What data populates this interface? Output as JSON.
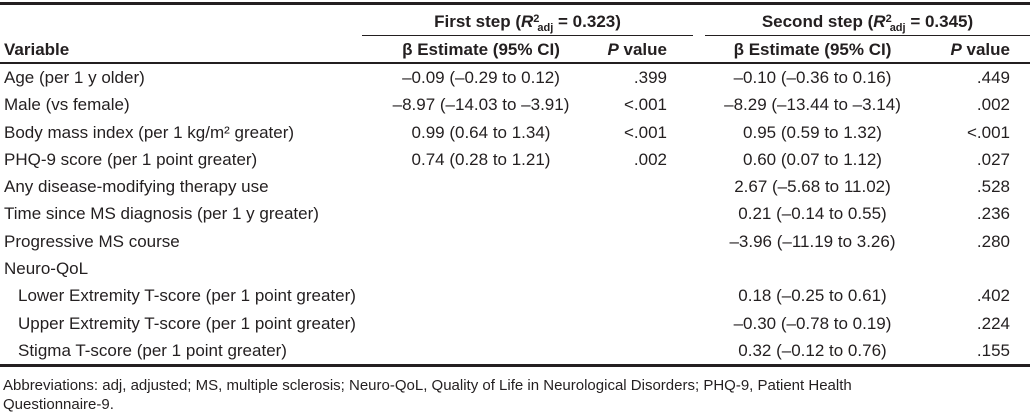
{
  "colors": {
    "text": "#231f20",
    "rule": "#231f20",
    "background": "#ffffff"
  },
  "header": {
    "variable_label": "Variable",
    "groups": [
      {
        "name_prefix": "First step (",
        "r_var": "R",
        "r_sup": "2",
        "r_sub": "adj",
        "name_suffix": " = 0.323)",
        "estimate_label": "β Estimate (95% CI)",
        "p_label_italic": "P",
        "p_label_rest": " value"
      },
      {
        "name_prefix": "Second step (",
        "r_var": "R",
        "r_sup": "2",
        "r_sub": "adj",
        "name_suffix": " = 0.345)",
        "estimate_label": "β Estimate (95% CI)",
        "p_label_italic": "P",
        "p_label_rest": " value"
      }
    ]
  },
  "rows": [
    {
      "variable": "Age (per 1 y older)",
      "step1_estimate": "–0.09 (–0.29 to 0.12)",
      "step1_p": ".399",
      "step2_estimate": "–0.10 (–0.36 to 0.16)",
      "step2_p": ".449"
    },
    {
      "variable": "Male (vs female)",
      "step1_estimate": "–8.97 (–14.03 to –3.91)",
      "step1_p": "<.001",
      "step2_estimate": "–8.29 (–13.44 to –3.14)",
      "step2_p": ".002"
    },
    {
      "variable": "Body mass index (per 1 kg/m² greater)",
      "step1_estimate": "0.99 (0.64 to 1.34)",
      "step1_p": "<.001",
      "step2_estimate": "0.95 (0.59 to 1.32)",
      "step2_p": "<.001"
    },
    {
      "variable": "PHQ-9 score (per 1 point greater)",
      "step1_estimate": "0.74 (0.28 to 1.21)",
      "step1_p": ".002",
      "step2_estimate": "0.60 (0.07 to 1.12)",
      "step2_p": ".027"
    },
    {
      "variable": "Any disease-modifying therapy use",
      "step1_estimate": "",
      "step1_p": "",
      "step2_estimate": "2.67 (–5.68 to 11.02)",
      "step2_p": ".528"
    },
    {
      "variable": "Time since MS diagnosis (per 1 y greater)",
      "step1_estimate": "",
      "step1_p": "",
      "step2_estimate": "0.21 (–0.14 to 0.55)",
      "step2_p": ".236"
    },
    {
      "variable": "Progressive MS course",
      "step1_estimate": "",
      "step1_p": "",
      "step2_estimate": "–3.96 (–11.19 to 3.26)",
      "step2_p": ".280"
    },
    {
      "variable": "Neuro-QoL",
      "step1_estimate": "",
      "step1_p": "",
      "step2_estimate": "",
      "step2_p": ""
    },
    {
      "variable": "Lower Extremity T-score (per 1 point greater)",
      "step1_estimate": "",
      "step1_p": "",
      "step2_estimate": "0.18 (–0.25 to 0.61)",
      "step2_p": ".402"
    },
    {
      "variable": "Upper Extremity T-score (per 1 point greater)",
      "step1_estimate": "",
      "step1_p": "",
      "step2_estimate": "–0.30 (–0.78 to 0.19)",
      "step2_p": ".224"
    },
    {
      "variable": "Stigma T-score (per 1 point greater)",
      "step1_estimate": "",
      "step1_p": "",
      "step2_estimate": "0.32 (–0.12 to 0.76)",
      "step2_p": ".155"
    }
  ],
  "footnote": {
    "line1": "Abbreviations: adj, adjusted; MS, multiple sclerosis; Neuro-QoL, Quality of Life in Neurological Disorders; PHQ-9, Patient Health",
    "line2": "Questionnaire-9."
  }
}
